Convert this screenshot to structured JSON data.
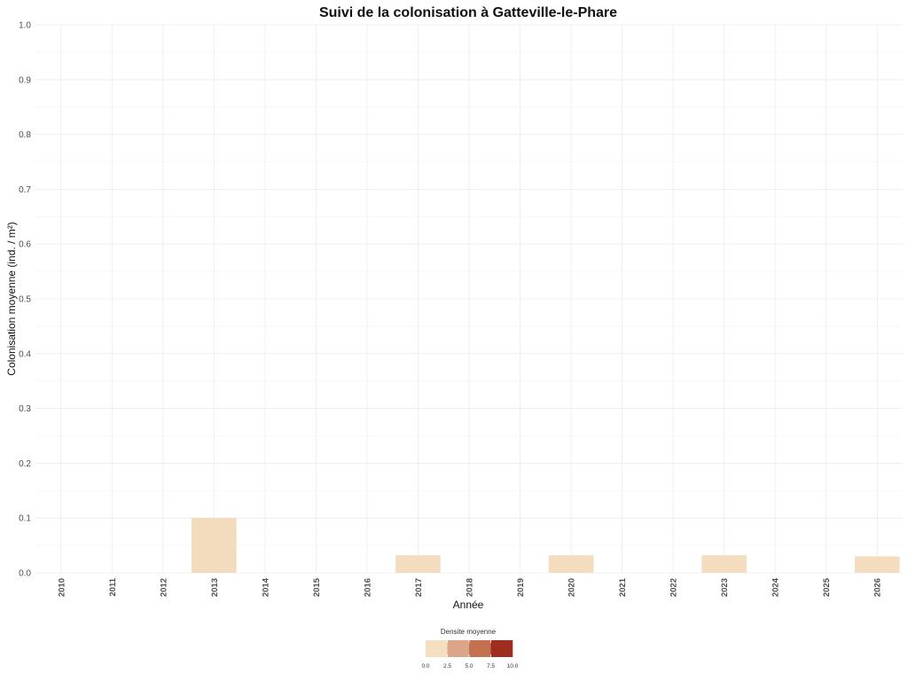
{
  "chart_data": {
    "type": "bar",
    "title": "Suivi de la colonisation à Gatteville-le-Phare",
    "xlabel": "Année",
    "ylabel": "Colonisation moyenne (ind. / m²)",
    "categories": [
      "2010",
      "2011",
      "2012",
      "2013",
      "2014",
      "2015",
      "2016",
      "2017",
      "2018",
      "2019",
      "2020",
      "2021",
      "2022",
      "2023",
      "2024",
      "2025",
      "2026"
    ],
    "values": [
      0,
      0,
      0,
      0.1,
      0,
      0,
      0,
      0.032,
      0,
      0,
      0.032,
      0,
      0,
      0.032,
      0,
      0,
      0.03
    ],
    "fill_values": [
      0,
      0,
      0,
      0.2,
      0,
      0,
      0,
      0.1,
      0,
      0,
      0.1,
      0,
      0,
      0.1,
      0,
      0,
      0.1
    ],
    "ylim": [
      0,
      1.0
    ],
    "yticks": [
      "0.0",
      "0.1",
      "0.2",
      "0.3",
      "0.4",
      "0.5",
      "0.6",
      "0.7",
      "0.8",
      "0.9",
      "1.0"
    ],
    "grid": true,
    "legend": {
      "title": "Densite moyenne",
      "position": "bottom",
      "ticks": [
        "0.0",
        "2.5",
        "5.0",
        "7.5",
        "10.0"
      ],
      "range": [
        0,
        10
      ],
      "colors": [
        "#f4dfc0",
        "#dca489",
        "#c4714f",
        "#9e2c1f"
      ]
    }
  }
}
